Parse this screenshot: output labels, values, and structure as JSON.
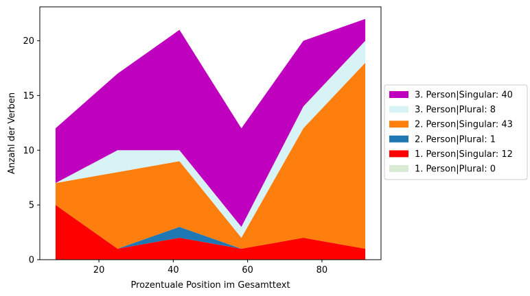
{
  "chart_data": {
    "type": "area",
    "stacked": true,
    "title": "",
    "xlabel": "Prozentuale Position im Gesamttext",
    "ylabel": "Anzahl der Verben",
    "x": [
      8.33,
      25,
      41.67,
      58.33,
      75,
      91.67
    ],
    "xlim": [
      4.1,
      95.9
    ],
    "ylim": [
      0,
      23.1
    ],
    "xticks": [
      20,
      40,
      60,
      80
    ],
    "yticks": [
      0,
      5,
      10,
      15,
      20
    ],
    "grid": false,
    "legend_position": "center-right",
    "series": [
      {
        "name": "1. Person|Plural",
        "legend": "1. Person|Plural: 0",
        "color": "#d9ead3",
        "values": [
          0,
          0,
          0,
          0,
          0,
          0
        ]
      },
      {
        "name": "1. Person|Singular",
        "legend": "1. Person|Singular: 12",
        "color": "#ff0000",
        "values": [
          5,
          1,
          2,
          1,
          2,
          1
        ]
      },
      {
        "name": "2. Person|Plural",
        "legend": "2. Person|Plural: 1",
        "color": "#1f77b4",
        "values": [
          0,
          0,
          1,
          0,
          0,
          0
        ]
      },
      {
        "name": "2. Person|Singular",
        "legend": "2. Person|Singular: 43",
        "color": "#ff7f0e",
        "values": [
          2,
          7,
          6,
          1,
          10,
          17
        ]
      },
      {
        "name": "3. Person|Plural",
        "legend": "3. Person|Plural: 8",
        "color": "#d8f3f5",
        "values": [
          0,
          2,
          1,
          1,
          2,
          2
        ]
      },
      {
        "name": "3. Person|Singular",
        "legend": "3. Person|Singular: 40",
        "color": "#bf00bf",
        "values": [
          5,
          7,
          11,
          9,
          6,
          2
        ]
      }
    ]
  }
}
